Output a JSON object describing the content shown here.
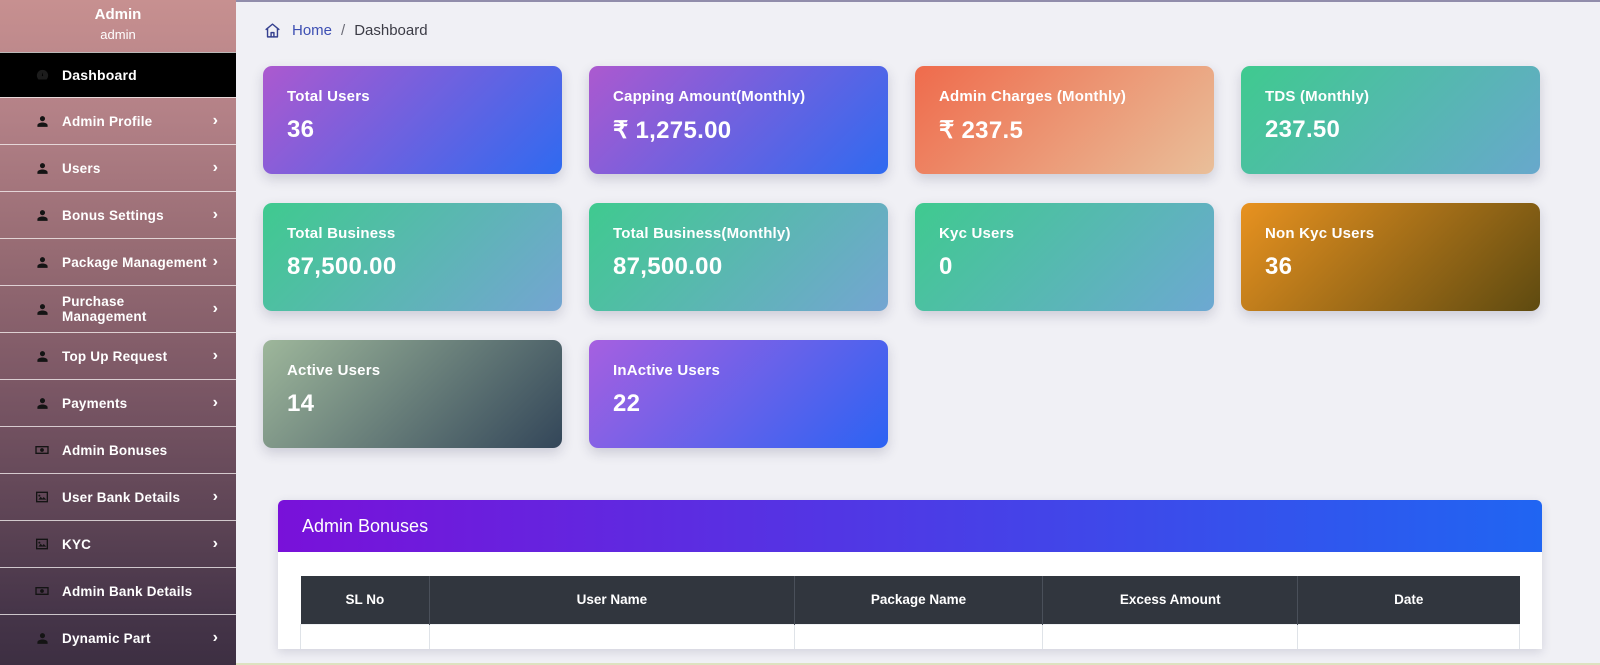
{
  "sidebar": {
    "title": "Admin",
    "subtitle": "admin",
    "items": [
      {
        "label": "Dashboard",
        "icon": "dashboard-icon",
        "active": true,
        "chevron": false
      },
      {
        "label": "Admin Profile",
        "icon": "user-icon",
        "active": false,
        "chevron": true
      },
      {
        "label": "Users",
        "icon": "user-icon",
        "active": false,
        "chevron": true
      },
      {
        "label": "Bonus Settings",
        "icon": "user-icon",
        "active": false,
        "chevron": true
      },
      {
        "label": "Package Management",
        "icon": "user-icon",
        "active": false,
        "chevron": true
      },
      {
        "label": "Purchase Management",
        "icon": "user-icon",
        "active": false,
        "chevron": true
      },
      {
        "label": "Top Up Request",
        "icon": "user-icon",
        "active": false,
        "chevron": true
      },
      {
        "label": "Payments",
        "icon": "user-icon",
        "active": false,
        "chevron": true
      },
      {
        "label": "Admin Bonuses",
        "icon": "money-icon",
        "active": false,
        "chevron": false
      },
      {
        "label": "User Bank Details",
        "icon": "image-icon",
        "active": false,
        "chevron": true
      },
      {
        "label": "KYC",
        "icon": "image-icon",
        "active": false,
        "chevron": true
      },
      {
        "label": "Admin Bank Details",
        "icon": "money-icon",
        "active": false,
        "chevron": false
      },
      {
        "label": "Dynamic Part",
        "icon": "user-icon",
        "active": false,
        "chevron": true
      }
    ]
  },
  "breadcrumb": {
    "home": "Home",
    "separator": "/",
    "current": "Dashboard"
  },
  "stat_cards": [
    {
      "label": "Total Users",
      "value": "36",
      "gradient": [
        "#ac59cf",
        "#2f6af0"
      ]
    },
    {
      "label": "Capping Amount(Monthly)",
      "value": "₹ 1,275.00",
      "gradient": [
        "#ac59cf",
        "#2f6af0"
      ]
    },
    {
      "label": "Admin Charges (Monthly)",
      "value": "₹ 237.5",
      "gradient": [
        "#ef6b4c",
        "#e9bf9a"
      ]
    },
    {
      "label": "TDS (Monthly)",
      "value": "237.50",
      "gradient": [
        "#3fca8f",
        "#68a8cc"
      ]
    },
    {
      "label": "Total Business",
      "value": "87,500.00",
      "gradient": [
        "#3fca8f",
        "#74a5d2"
      ]
    },
    {
      "label": "Total Business(Monthly)",
      "value": "87,500.00",
      "gradient": [
        "#3fca8f",
        "#74a5d2"
      ]
    },
    {
      "label": "Kyc Users",
      "value": "0",
      "gradient": [
        "#3fca8f",
        "#6da8d2"
      ]
    },
    {
      "label": "Non Kyc Users",
      "value": "36",
      "gradient": [
        "#e89220",
        "#5e4a10"
      ]
    },
    {
      "label": "Active Users",
      "value": "14",
      "gradient": [
        "#9eb79b",
        "#334659"
      ]
    },
    {
      "label": "InActive Users",
      "value": "22",
      "gradient": [
        "#a660e0",
        "#2c63f3"
      ]
    }
  ],
  "bonuses_panel": {
    "title": "Admin Bonuses",
    "header_gradient": [
      "#7911d9",
      "#2065f2"
    ],
    "table": {
      "columns": [
        "SL No",
        "User Name",
        "Package Name",
        "Excess Amount",
        "Date"
      ],
      "column_widths": [
        "10.6%",
        "29.9%",
        "20.4%",
        "20.9%",
        "18.2%"
      ],
      "rows": []
    }
  },
  "colors": {
    "page_background": "#f0f0f5",
    "sidebar_top": "#c79090",
    "sidebar_bottom": "#3d2f42",
    "active_item_background": "#000000",
    "breadcrumb_link": "#3d4fb3",
    "table_header_background": "#31363e"
  }
}
